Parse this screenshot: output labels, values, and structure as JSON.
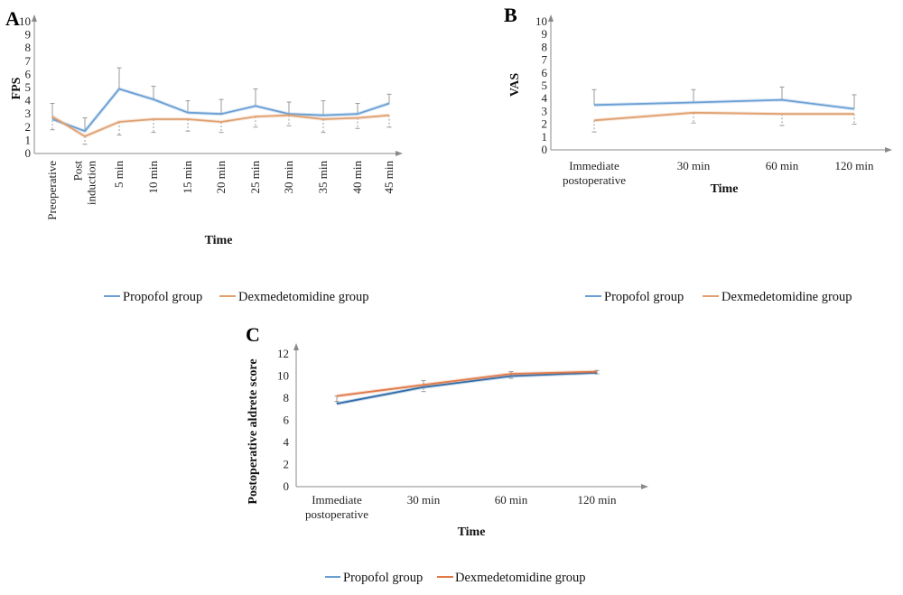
{
  "legend": {
    "propofol": "Propofol group",
    "dexmedetomidine": "Dexmedetomidine group"
  },
  "colors": {
    "propofol": "#6a9fd4",
    "dexmedetomidine": "#e0a070",
    "axis": "#8a8a8a",
    "error": "#9a9a9a"
  },
  "chart_data": [
    {
      "panel": "A",
      "type": "line",
      "xlabel": "Time",
      "ylabel": "FPS",
      "categories": [
        [
          "Preoperative"
        ],
        [
          "Post",
          "induction"
        ],
        [
          "5 min"
        ],
        [
          "10 min"
        ],
        [
          "15 min"
        ],
        [
          "20 min"
        ],
        [
          "25 min"
        ],
        [
          "30 min"
        ],
        [
          "35 min"
        ],
        [
          "40 min"
        ],
        [
          "45 min"
        ]
      ],
      "ylim": [
        0,
        10
      ],
      "yticks": [
        0,
        1,
        2,
        3,
        4,
        5,
        6,
        7,
        8,
        9,
        10
      ],
      "series": [
        {
          "name": "Propofol group",
          "values": [
            2.6,
            1.7,
            4.9,
            4.1,
            3.1,
            3.0,
            3.6,
            3.0,
            2.9,
            3.0,
            3.8
          ],
          "error": [
            1.2,
            1.0,
            1.6,
            1.0,
            0.9,
            1.1,
            1.3,
            0.9,
            1.1,
            0.8,
            0.7
          ]
        },
        {
          "name": "Dexmedetomidine group",
          "values": [
            2.8,
            1.3,
            2.4,
            2.6,
            2.6,
            2.4,
            2.8,
            2.9,
            2.6,
            2.7,
            2.9
          ],
          "error": [
            1.0,
            0.6,
            1.0,
            1.0,
            0.9,
            0.8,
            0.8,
            0.8,
            1.0,
            0.8,
            0.9
          ]
        }
      ]
    },
    {
      "panel": "B",
      "type": "line",
      "xlabel": "Time",
      "ylabel": "VAS",
      "categories": [
        [
          "Immediate",
          "postoperative"
        ],
        [
          "30 min"
        ],
        [
          "60 min"
        ],
        [
          "120 min"
        ]
      ],
      "ylim": [
        0,
        10
      ],
      "yticks": [
        0,
        1,
        2,
        3,
        4,
        5,
        6,
        7,
        8,
        9,
        10
      ],
      "series": [
        {
          "name": "Propofol group",
          "values": [
            3.5,
            3.7,
            3.9,
            3.2
          ],
          "error": [
            1.2,
            1.0,
            1.0,
            1.1
          ]
        },
        {
          "name": "Dexmedetomidine group",
          "values": [
            2.3,
            2.9,
            2.8,
            2.8
          ],
          "error": [
            0.9,
            0.8,
            0.9,
            0.8
          ]
        }
      ]
    },
    {
      "panel": "C",
      "type": "line",
      "xlabel": "Time",
      "ylabel": "Postoperative aldrete score",
      "categories": [
        [
          "Immediate",
          "postoperative"
        ],
        [
          "30 min"
        ],
        [
          "60 min"
        ],
        [
          "120 min"
        ]
      ],
      "ylim": [
        0,
        12
      ],
      "yticks": [
        0,
        2,
        4,
        6,
        8,
        10,
        12
      ],
      "series": [
        {
          "name": "Propofol group",
          "values": [
            7.5,
            9.0,
            10.0,
            10.3
          ],
          "error": [
            0.7,
            0.6,
            0.4,
            0.2
          ]
        },
        {
          "name": "Dexmedetomidine group",
          "values": [
            8.2,
            9.2,
            10.2,
            10.4
          ],
          "error": [
            0.5,
            0.6,
            0.4,
            0.2
          ]
        }
      ]
    }
  ]
}
